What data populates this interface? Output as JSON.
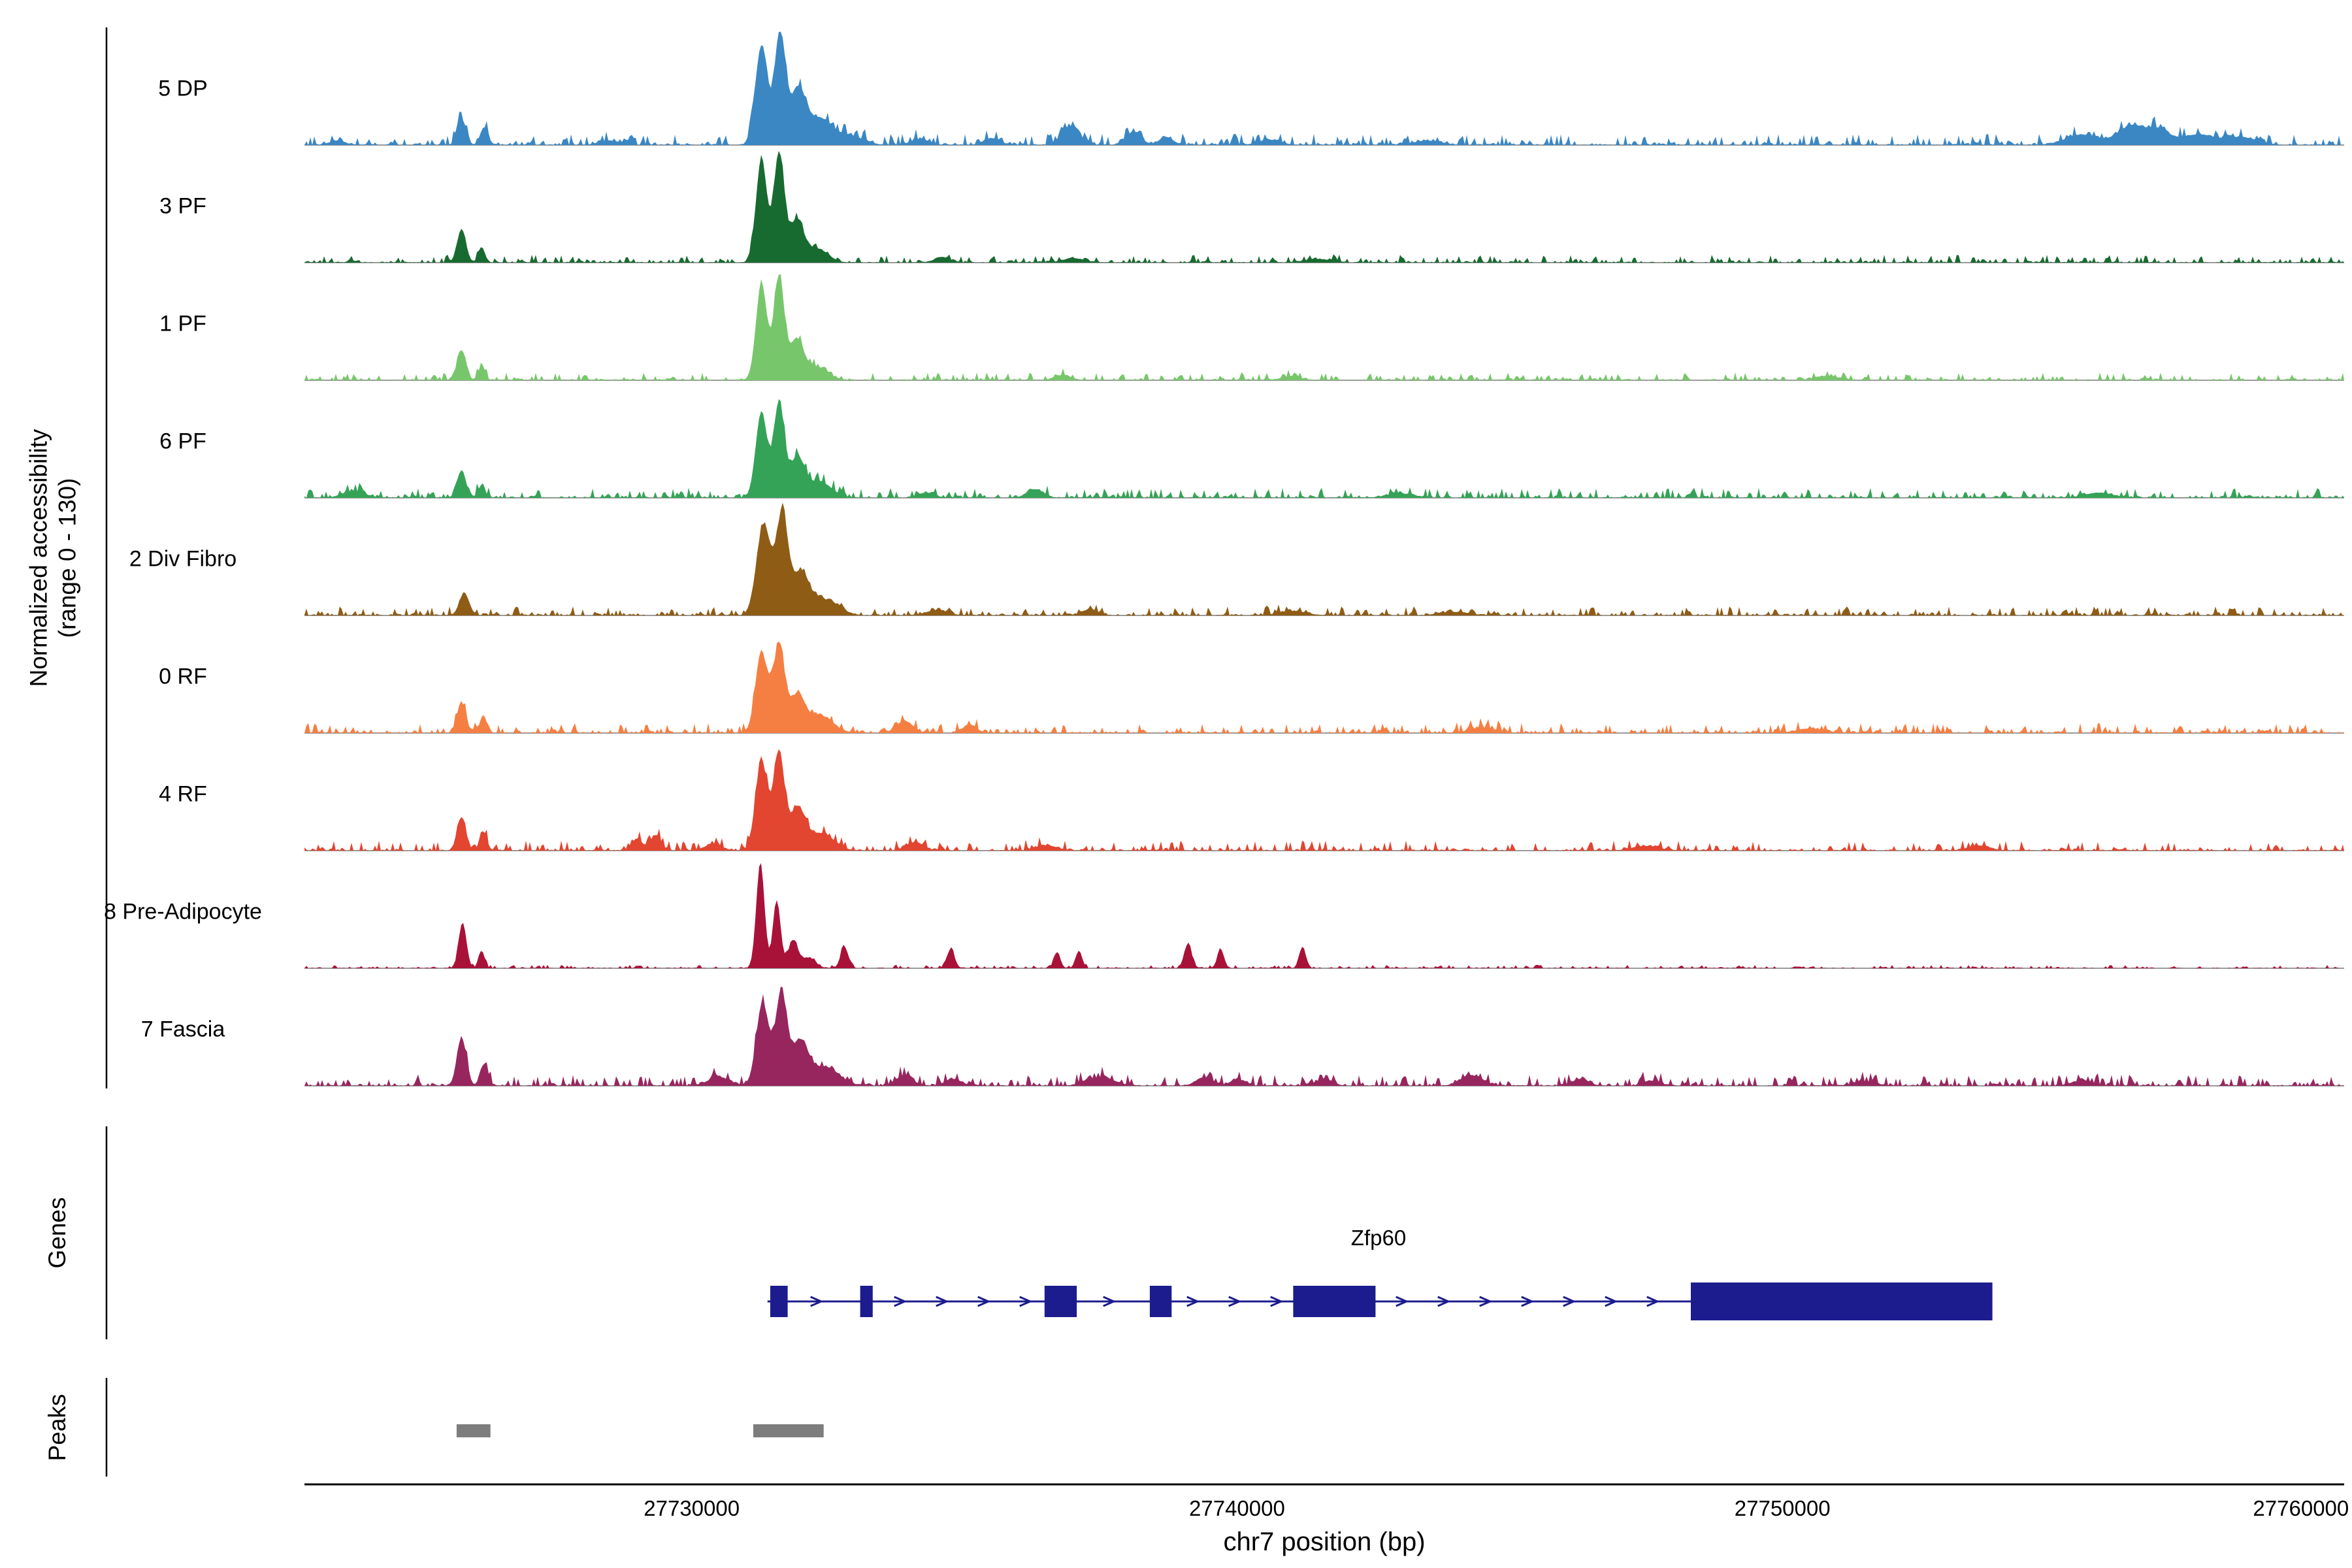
{
  "y_axis": {
    "label_line1": "Normalized accessibility",
    "label_line2": "(range 0 - 130)"
  },
  "sections": {
    "genes_label": "Genes",
    "peaks_label": "Peaks"
  },
  "x_axis": {
    "title": "chr7 position (bp)",
    "ticks": [
      {
        "bp": 27730000,
        "label": "27730000"
      },
      {
        "bp": 27740000,
        "label": "27740000"
      },
      {
        "bp": 27750000,
        "label": "27750000"
      },
      {
        "bp": 27760000,
        "label": "27760000"
      }
    ]
  },
  "chart_data": {
    "type": "area",
    "title": "",
    "xlabel": "chr7 position (bp)",
    "ylabel": "Normalized accessibility (range 0 - 130)",
    "x_range_bp": [
      27722900,
      27760300
    ],
    "y_range": [
      0,
      130
    ],
    "gene_color": "#1c1c8e",
    "peak_color": "#7d7d7d",
    "baseline_color": "#9a9a9a",
    "tracks": [
      {
        "name": "5 DP",
        "color": "#3a87c4",
        "noise": 5,
        "peaks": [
          [
            27723500,
            150,
            5
          ],
          [
            27725780,
            80,
            30
          ],
          [
            27726200,
            70,
            20
          ],
          [
            27728500,
            200,
            5
          ],
          [
            27731280,
            110,
            115
          ],
          [
            27731620,
            100,
            130
          ],
          [
            27731950,
            140,
            62
          ],
          [
            27732350,
            220,
            30
          ],
          [
            27732900,
            250,
            10
          ],
          [
            27734200,
            150,
            7
          ],
          [
            27735500,
            150,
            8
          ],
          [
            27736950,
            160,
            22
          ],
          [
            27738100,
            140,
            15
          ],
          [
            27738700,
            130,
            9
          ],
          [
            27740600,
            200,
            6
          ],
          [
            27743500,
            250,
            5
          ],
          [
            27755500,
            300,
            12
          ],
          [
            27756400,
            250,
            22
          ],
          [
            27756900,
            200,
            16
          ],
          [
            27757600,
            300,
            12
          ],
          [
            27758400,
            300,
            9
          ]
        ]
      },
      {
        "name": "3 PF",
        "color": "#186b30",
        "noise": 3.5,
        "peaks": [
          [
            27725780,
            80,
            39
          ],
          [
            27726150,
            60,
            18
          ],
          [
            27731280,
            100,
            120
          ],
          [
            27731600,
            95,
            126
          ],
          [
            27731920,
            130,
            48
          ],
          [
            27732300,
            200,
            16
          ],
          [
            27734600,
            150,
            6
          ],
          [
            27737000,
            200,
            5
          ],
          [
            27741500,
            250,
            4
          ]
        ]
      },
      {
        "name": "1 PF",
        "color": "#77c66b",
        "noise": 3.5,
        "peaks": [
          [
            27725780,
            80,
            35
          ],
          [
            27726150,
            60,
            16
          ],
          [
            27731280,
            100,
            112
          ],
          [
            27731600,
            95,
            119
          ],
          [
            27731920,
            130,
            46
          ],
          [
            27732300,
            200,
            15
          ],
          [
            27736800,
            150,
            6
          ],
          [
            27741000,
            200,
            4
          ],
          [
            27750800,
            200,
            5
          ]
        ]
      },
      {
        "name": "6 PF",
        "color": "#35a357",
        "noise": 4.5,
        "peaks": [
          [
            27723800,
            200,
            8
          ],
          [
            27725780,
            80,
            32
          ],
          [
            27726150,
            60,
            15
          ],
          [
            27731280,
            105,
            100
          ],
          [
            27731600,
            95,
            109
          ],
          [
            27731930,
            140,
            45
          ],
          [
            27732350,
            220,
            18
          ],
          [
            27734300,
            150,
            6
          ],
          [
            27736300,
            150,
            10
          ],
          [
            27743000,
            250,
            5
          ],
          [
            27755800,
            250,
            6
          ]
        ]
      },
      {
        "name": "2 Div Fibro",
        "color": "#8f5c15",
        "noise": 4,
        "peaks": [
          [
            27725830,
            90,
            26
          ],
          [
            27731320,
            130,
            105
          ],
          [
            27731660,
            110,
            114
          ],
          [
            27732000,
            150,
            48
          ],
          [
            27732450,
            250,
            18
          ],
          [
            27734500,
            200,
            6
          ],
          [
            27737300,
            150,
            7
          ],
          [
            27741000,
            250,
            5
          ],
          [
            27744000,
            250,
            4
          ]
        ]
      },
      {
        "name": "0 RF",
        "color": "#f57f42",
        "noise": 4.5,
        "peaks": [
          [
            27725780,
            80,
            35
          ],
          [
            27726180,
            65,
            20
          ],
          [
            27731280,
            110,
            95
          ],
          [
            27731600,
            100,
            102
          ],
          [
            27731930,
            140,
            42
          ],
          [
            27732350,
            230,
            20
          ],
          [
            27733900,
            150,
            14
          ],
          [
            27735100,
            120,
            10
          ],
          [
            27744500,
            250,
            6
          ],
          [
            27750500,
            250,
            5
          ]
        ]
      },
      {
        "name": "4 RF",
        "color": "#e24530",
        "noise": 4.5,
        "peaks": [
          [
            27725780,
            80,
            39
          ],
          [
            27726180,
            65,
            22
          ],
          [
            27729000,
            100,
            14
          ],
          [
            27729350,
            90,
            18
          ],
          [
            27730400,
            150,
            8
          ],
          [
            27731280,
            110,
            104
          ],
          [
            27731600,
            100,
            112
          ],
          [
            27731940,
            140,
            48
          ],
          [
            27732380,
            230,
            20
          ],
          [
            27734100,
            150,
            10
          ],
          [
            27736500,
            200,
            6
          ],
          [
            27747500,
            250,
            5
          ],
          [
            27753600,
            200,
            6
          ]
        ]
      },
      {
        "name": "8 Pre-Adipocyte",
        "color": "#a91238",
        "noise": 1.5,
        "peaks": [
          [
            27725800,
            70,
            53
          ],
          [
            27726150,
            55,
            20
          ],
          [
            27731260,
            75,
            123
          ],
          [
            27731560,
            70,
            78
          ],
          [
            27731860,
            90,
            32
          ],
          [
            27732150,
            120,
            12
          ],
          [
            27732800,
            70,
            25
          ],
          [
            27734750,
            70,
            22
          ],
          [
            27736700,
            60,
            18
          ],
          [
            27737100,
            60,
            20
          ],
          [
            27739100,
            70,
            28
          ],
          [
            27739700,
            60,
            22
          ],
          [
            27741200,
            60,
            25
          ]
        ]
      },
      {
        "name": "7 Fascia",
        "color": "#97265e",
        "noise": 5,
        "peaks": [
          [
            27725780,
            85,
            56
          ],
          [
            27726200,
            70,
            26
          ],
          [
            27730500,
            200,
            10
          ],
          [
            27731300,
            115,
            96
          ],
          [
            27731640,
            105,
            105
          ],
          [
            27731980,
            150,
            50
          ],
          [
            27732450,
            250,
            22
          ],
          [
            27733900,
            150,
            12
          ],
          [
            27734800,
            150,
            8
          ],
          [
            27737500,
            250,
            10
          ],
          [
            27739400,
            150,
            10
          ],
          [
            27740000,
            120,
            8
          ],
          [
            27741600,
            150,
            8
          ],
          [
            27744300,
            200,
            12
          ],
          [
            27746300,
            150,
            8
          ],
          [
            27747600,
            150,
            6
          ],
          [
            27751500,
            200,
            5
          ],
          [
            27755500,
            200,
            6
          ]
        ]
      }
    ],
    "gene": {
      "name": "Zfp60",
      "strand": "+",
      "start_bp": 27731390,
      "end_bp": 27753850,
      "exons_bp": [
        [
          27731440,
          27731760
        ],
        [
          27733090,
          27733320
        ],
        [
          27736470,
          27737060
        ],
        [
          27738400,
          27738800
        ],
        [
          27741030,
          27742540
        ],
        [
          27748320,
          27753850
        ]
      ]
    },
    "peak_regions_bp": [
      [
        27725690,
        27726310
      ],
      [
        27731130,
        27732420
      ]
    ]
  }
}
